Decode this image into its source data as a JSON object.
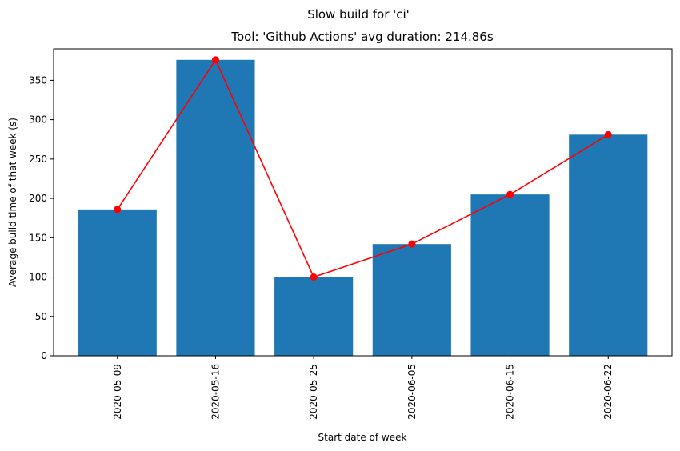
{
  "chart_data": {
    "type": "bar",
    "suptitle": "Slow build for 'ci'",
    "title": "Tool: 'Github Actions' avg duration: 214.86s",
    "xlabel": "Start date of week",
    "ylabel": "Average build time of that week (s)",
    "categories": [
      "2020-05-09",
      "2020-05-16",
      "2020-05-25",
      "2020-06-05",
      "2020-06-15",
      "2020-06-22"
    ],
    "values": [
      186,
      376,
      100,
      142,
      205,
      281
    ],
    "ylim": [
      0,
      390
    ],
    "yticks": [
      0,
      50,
      100,
      150,
      200,
      250,
      300,
      350
    ],
    "grid": false,
    "bar_color": "#1f77b4",
    "line_color": "#ff0000",
    "overlay": "line-with-markers"
  }
}
